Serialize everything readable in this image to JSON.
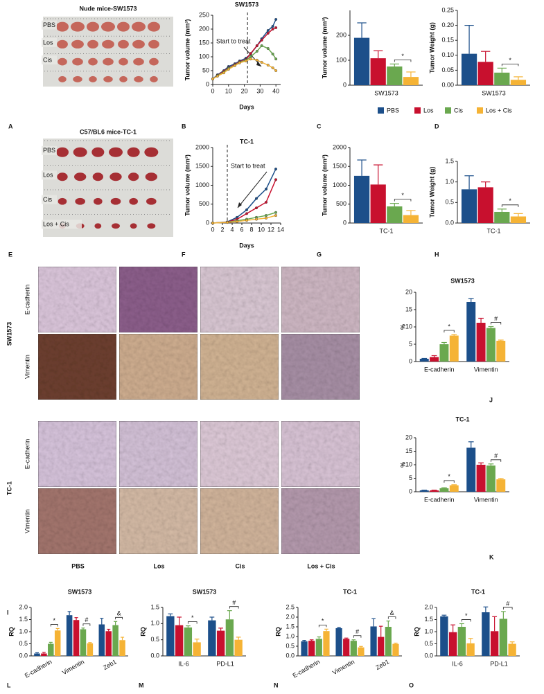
{
  "figure": {
    "panel_letters": [
      "A",
      "B",
      "C",
      "D",
      "E",
      "F",
      "G",
      "H",
      "I",
      "J",
      "K",
      "L",
      "M",
      "N",
      "O"
    ],
    "photos": [
      {
        "title": "Nude mice-SW1573",
        "rows": [
          "PBS",
          "Los",
          "Cis",
          null
        ]
      },
      {
        "title": "C57/BL6 mice-TC-1",
        "rows": [
          "PBS",
          "Los",
          "Cis",
          "Los + Cis"
        ]
      }
    ],
    "ihc": {
      "groups": [
        "SW1573",
        "TC-1"
      ],
      "stains": [
        "E-cadherin",
        "Vimentin"
      ],
      "columns": [
        "PBS",
        "Los",
        "Cis",
        "Los  + Cis"
      ]
    }
  },
  "chart_data": [
    {
      "type": "line",
      "title": "SW1573",
      "xlabel": "Days",
      "ylabel": "Tumor volume (mm³)",
      "annotation": "Start to treat",
      "marker_x": 22,
      "x": [
        0,
        3,
        7,
        10,
        14,
        17,
        21,
        24,
        28,
        31,
        35,
        38,
        40
      ],
      "xlim": [
        0,
        43
      ],
      "xticks": [
        0,
        10,
        20,
        30,
        40
      ],
      "ylim": [
        0,
        250
      ],
      "yticks": [
        0,
        50,
        100,
        150,
        200,
        250
      ],
      "series": [
        {
          "name": "PBS",
          "color": "#1c4f8a",
          "values": [
            20,
            35,
            50,
            65,
            75,
            85,
            95,
            110,
            140,
            165,
            195,
            210,
            235
          ]
        },
        {
          "name": "Los",
          "color": "#c8102e",
          "values": [
            20,
            33,
            48,
            60,
            72,
            82,
            90,
            112,
            140,
            160,
            185,
            200,
            205
          ]
        },
        {
          "name": "Cis",
          "color": "#6aa84f",
          "values": [
            20,
            32,
            45,
            58,
            70,
            80,
            88,
            100,
            120,
            140,
            130,
            110,
            92
          ]
        },
        {
          "name": "Los + Cis",
          "color": "#f5b335",
          "values": [
            20,
            30,
            42,
            55,
            68,
            78,
            85,
            92,
            88,
            80,
            70,
            60,
            50
          ]
        }
      ]
    },
    {
      "type": "bar",
      "ylabel": "Tumor volume (mm³)",
      "categories": [
        "SW1573"
      ],
      "ylim": [
        0,
        300
      ],
      "yticks": [
        0,
        100,
        200
      ],
      "legend": "bottom",
      "series": [
        {
          "name": "PBS",
          "color": "#1c4f8a",
          "values": [
            190
          ],
          "errors": [
            60
          ]
        },
        {
          "name": "Los",
          "color": "#c8102e",
          "values": [
            108
          ],
          "errors": [
            30
          ]
        },
        {
          "name": "Cis",
          "color": "#6aa84f",
          "values": [
            75
          ],
          "errors": [
            10
          ]
        },
        {
          "name": "Los + Cis",
          "color": "#f5b335",
          "values": [
            33
          ],
          "errors": [
            20
          ]
        }
      ],
      "annotations": [
        {
          "text": "*",
          "category": "SW1573"
        }
      ]
    },
    {
      "type": "bar",
      "ylabel": "Tumor Weight (g)",
      "categories": [
        "SW1573"
      ],
      "ylim": [
        0,
        0.25
      ],
      "yticks": [
        {
          "value": 0,
          "label": "0.00"
        },
        {
          "value": 0.05,
          "label": "0.05"
        },
        {
          "value": 0.1,
          "label": "0.10"
        },
        {
          "value": 0.15,
          "label": "0.15"
        },
        {
          "value": 0.2,
          "label": "0.20"
        },
        {
          "value": 0.25,
          "label": "0.25"
        }
      ],
      "series": [
        {
          "name": "PBS",
          "color": "#1c4f8a",
          "values": [
            0.105
          ],
          "errors": [
            0.095
          ]
        },
        {
          "name": "Los",
          "color": "#c8102e",
          "values": [
            0.078
          ],
          "errors": [
            0.035
          ]
        },
        {
          "name": "Cis",
          "color": "#6aa84f",
          "values": [
            0.042
          ],
          "errors": [
            0.015
          ]
        },
        {
          "name": "Los + Cis",
          "color": "#f5b335",
          "values": [
            0.018
          ],
          "errors": [
            0.01
          ]
        }
      ],
      "annotations": [
        {
          "text": "*",
          "category": "SW1573"
        }
      ]
    },
    {
      "type": "line",
      "title": "TC-1",
      "xlabel": "Days",
      "ylabel": "Tumor volume (mm³)",
      "annotation": "Start to treat",
      "marker_x": 3,
      "x": [
        0,
        3,
        5,
        7,
        9,
        11,
        13
      ],
      "xlim": [
        0,
        14
      ],
      "xticks": [
        0,
        2,
        4,
        6,
        8,
        10,
        12,
        14
      ],
      "ylim": [
        0,
        2000
      ],
      "yticks": [
        0,
        500,
        1000,
        1500,
        2000
      ],
      "series": [
        {
          "name": "PBS",
          "color": "#1c4f8a",
          "values": [
            0,
            30,
            150,
            350,
            650,
            900,
            1430
          ]
        },
        {
          "name": "Los",
          "color": "#c8102e",
          "values": [
            0,
            25,
            100,
            250,
            400,
            550,
            1150
          ]
        },
        {
          "name": "Cis",
          "color": "#6aa84f",
          "values": [
            0,
            20,
            60,
            100,
            150,
            200,
            280
          ]
        },
        {
          "name": "Los + Cis",
          "color": "#f5b335",
          "values": [
            0,
            15,
            40,
            70,
            100,
            130,
            200
          ]
        }
      ]
    },
    {
      "type": "bar",
      "ylabel": "Tumor volume (mm³)",
      "categories": [
        "TC-1"
      ],
      "ylim": [
        0,
        2000
      ],
      "yticks": [
        0,
        500,
        1000,
        1500,
        2000
      ],
      "series": [
        {
          "name": "PBS",
          "color": "#1c4f8a",
          "values": [
            1250
          ],
          "errors": [
            420
          ]
        },
        {
          "name": "Los",
          "color": "#c8102e",
          "values": [
            1020
          ],
          "errors": [
            520
          ]
        },
        {
          "name": "Cis",
          "color": "#6aa84f",
          "values": [
            440
          ],
          "errors": [
            80
          ]
        },
        {
          "name": "Los + Cis",
          "color": "#f5b335",
          "values": [
            210
          ],
          "errors": [
            120
          ]
        }
      ],
      "annotations": [
        {
          "text": "*",
          "category": "TC-1"
        }
      ]
    },
    {
      "type": "bar",
      "ylabel": "Tumor Weight (g)",
      "categories": [
        "TC-1"
      ],
      "ylim": [
        0,
        1.5
      ],
      "yticks": [
        {
          "value": 0,
          "label": "0.0"
        },
        0.5,
        {
          "value": 1,
          "label": "1.0"
        },
        1.5
      ],
      "series": [
        {
          "name": "PBS",
          "color": "#1c4f8a",
          "values": [
            0.82
          ],
          "errors": [
            0.33
          ]
        },
        {
          "name": "Los",
          "color": "#c8102e",
          "values": [
            0.87
          ],
          "errors": [
            0.13
          ]
        },
        {
          "name": "Cis",
          "color": "#6aa84f",
          "values": [
            0.27
          ],
          "errors": [
            0.07
          ]
        },
        {
          "name": "Los + Cis",
          "color": "#f5b335",
          "values": [
            0.16
          ],
          "errors": [
            0.07
          ]
        }
      ],
      "annotations": [
        {
          "text": "*",
          "category": "TC-1"
        }
      ]
    },
    {
      "type": "bar",
      "title": "SW1573",
      "ylabel": "%",
      "categories": [
        "E-cadherin",
        "Vimentin"
      ],
      "ylim": [
        0,
        20
      ],
      "yticks": [
        0,
        5,
        10,
        15,
        20
      ],
      "series": [
        {
          "name": "PBS",
          "color": "#1c4f8a",
          "values": [
            0.8,
            17.2
          ],
          "errors": [
            0.1,
            1.0
          ]
        },
        {
          "name": "Los",
          "color": "#c8102e",
          "values": [
            1.3,
            11.2
          ],
          "errors": [
            0.4,
            1.3
          ]
        },
        {
          "name": "Cis",
          "color": "#6aa84f",
          "values": [
            5,
            9.7
          ],
          "errors": [
            0.5,
            0.4
          ]
        },
        {
          "name": "Los + Cis",
          "color": "#f5b335",
          "values": [
            7.5,
            6
          ],
          "errors": [
            0.3,
            0.2
          ]
        }
      ],
      "annotations": [
        {
          "text": "*",
          "category": "E-cadherin"
        },
        {
          "text": "#",
          "category": "Vimentin"
        }
      ]
    },
    {
      "type": "bar",
      "title": "TC-1",
      "ylabel": "%",
      "categories": [
        "E-cadherin",
        "Vimentin"
      ],
      "ylim": [
        0,
        20
      ],
      "yticks": [
        0,
        5,
        10,
        15,
        20
      ],
      "series": [
        {
          "name": "PBS",
          "color": "#1c4f8a",
          "values": [
            0.5,
            16.3
          ],
          "errors": [
            0.1,
            2.2
          ]
        },
        {
          "name": "Los",
          "color": "#c8102e",
          "values": [
            0.5,
            10
          ],
          "errors": [
            0.1,
            0.7
          ]
        },
        {
          "name": "Cis",
          "color": "#6aa84f",
          "values": [
            1.3,
            9.7
          ],
          "errors": [
            0.2,
            0.6
          ]
        },
        {
          "name": "Los + Cis",
          "color": "#f5b335",
          "values": [
            2.4,
            4.6
          ],
          "errors": [
            0.2,
            0.3
          ]
        }
      ],
      "annotations": [
        {
          "text": "*",
          "category": "E-cadherin"
        },
        {
          "text": "#",
          "category": "Vimentin"
        }
      ]
    },
    {
      "type": "bar",
      "title": "SW1573",
      "ylabel": "RQ",
      "categories": [
        "E-cadherin",
        "Vimentin",
        "Zeb1"
      ],
      "ylim": [
        0,
        2
      ],
      "yticks": [
        {
          "value": 0,
          "label": "0.0"
        },
        0.5,
        {
          "value": 1,
          "label": "1.0"
        },
        1.5,
        {
          "value": 2,
          "label": "2.0"
        }
      ],
      "series": [
        {
          "name": "PBS",
          "color": "#1c4f8a",
          "values": [
            0.1,
            1.68,
            1.3
          ],
          "errors": [
            0.03,
            0.15,
            0.25
          ]
        },
        {
          "name": "Los",
          "color": "#c8102e",
          "values": [
            0.1,
            1.48,
            1.02
          ],
          "errors": [
            0.05,
            0.1,
            0.08
          ]
        },
        {
          "name": "Cis",
          "color": "#6aa84f",
          "values": [
            0.5,
            1.1,
            1.27
          ],
          "errors": [
            0.06,
            0.05,
            0.15
          ]
        },
        {
          "name": "Los + Cis",
          "color": "#f5b335",
          "values": [
            1.05,
            0.52,
            0.65
          ],
          "errors": [
            0.08,
            0.03,
            0.12
          ]
        }
      ],
      "annotations": [
        {
          "text": "*",
          "category": "E-cadherin"
        },
        {
          "text": "#",
          "category": "Vimentin"
        },
        {
          "text": "&",
          "category": "Zeb1"
        }
      ]
    },
    {
      "type": "bar",
      "title": "SW1573",
      "ylabel": "RQ",
      "categories": [
        "IL-6",
        "PD-L1"
      ],
      "ylim": [
        0,
        1.5
      ],
      "yticks": [
        {
          "value": 0,
          "label": "0.0"
        },
        0.5,
        {
          "value": 1,
          "label": "1.0"
        },
        1.5
      ],
      "series": [
        {
          "name": "PBS",
          "color": "#1c4f8a",
          "values": [
            1.23,
            1.1
          ],
          "errors": [
            0.07,
            0.1
          ]
        },
        {
          "name": "Los",
          "color": "#c8102e",
          "values": [
            0.95,
            0.78
          ],
          "errors": [
            0.25,
            0.08
          ]
        },
        {
          "name": "Cis",
          "color": "#6aa84f",
          "values": [
            0.88,
            1.13
          ],
          "errors": [
            0.05,
            0.27
          ]
        },
        {
          "name": "Los + Cis",
          "color": "#f5b335",
          "values": [
            0.42,
            0.5
          ],
          "errors": [
            0.1,
            0.08
          ]
        }
      ],
      "annotations": [
        {
          "text": "*",
          "category": "IL-6"
        },
        {
          "text": "#",
          "category": "PD-L1"
        }
      ]
    },
    {
      "type": "bar",
      "title": "TC-1",
      "ylabel": "RQ",
      "categories": [
        "E-cadherin",
        "Vimentin",
        "Zeb1"
      ],
      "ylim": [
        0,
        2.5
      ],
      "yticks": [
        {
          "value": 0,
          "label": "0.0"
        },
        0.5,
        {
          "value": 1,
          "label": "1.0"
        },
        1.5,
        {
          "value": 2,
          "label": "2.0"
        },
        2.5
      ],
      "series": [
        {
          "name": "PBS",
          "color": "#1c4f8a",
          "values": [
            0.75,
            1.43,
            1.52
          ],
          "errors": [
            0.05,
            0.04,
            0.4
          ]
        },
        {
          "name": "Los",
          "color": "#c8102e",
          "values": [
            0.78,
            0.88,
            0.98
          ],
          "errors": [
            0.05,
            0.04,
            0.55
          ]
        },
        {
          "name": "Cis",
          "color": "#6aa84f",
          "values": [
            0.88,
            0.78,
            1.5
          ],
          "errors": [
            0.1,
            0.05,
            0.3
          ]
        },
        {
          "name": "Los + Cis",
          "color": "#f5b335",
          "values": [
            1.28,
            0.44,
            0.62
          ],
          "errors": [
            0.1,
            0.05,
            0.04
          ]
        }
      ],
      "annotations": [
        {
          "text": "*",
          "category": "E-cadherin"
        },
        {
          "text": "#",
          "category": "Vimentin"
        },
        {
          "text": "&",
          "category": "Zeb1"
        }
      ]
    },
    {
      "type": "bar",
      "title": "TC-1",
      "ylabel": "RQ",
      "categories": [
        "IL-6",
        "PD-L1"
      ],
      "ylim": [
        0,
        2
      ],
      "yticks": [
        {
          "value": 0,
          "label": "0.0"
        },
        0.5,
        {
          "value": 1,
          "label": "1.0"
        },
        1.5,
        {
          "value": 2,
          "label": "2.0"
        }
      ],
      "series": [
        {
          "name": "PBS",
          "color": "#1c4f8a",
          "values": [
            1.63,
            1.8
          ],
          "errors": [
            0.05,
            0.22
          ]
        },
        {
          "name": "Los",
          "color": "#c8102e",
          "values": [
            0.98,
            1.02
          ],
          "errors": [
            0.3,
            0.6
          ]
        },
        {
          "name": "Cis",
          "color": "#6aa84f",
          "values": [
            1.2,
            1.53
          ],
          "errors": [
            0.13,
            0.3
          ]
        },
        {
          "name": "Los + Cis",
          "color": "#f5b335",
          "values": [
            0.52,
            0.5
          ],
          "errors": [
            0.2,
            0.08
          ]
        }
      ],
      "annotations": [
        {
          "text": "*",
          "category": "IL-6"
        },
        {
          "text": "#",
          "category": "PD-L1"
        }
      ]
    }
  ]
}
